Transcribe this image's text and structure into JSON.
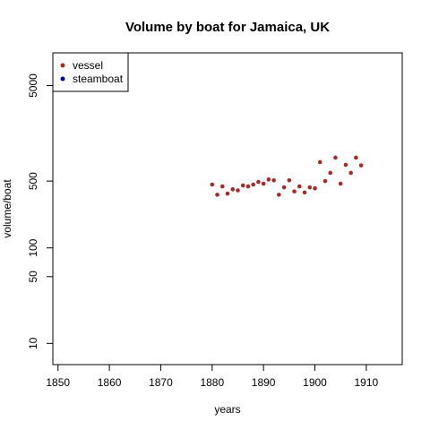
{
  "chart_data": {
    "type": "scatter",
    "title": "Volume by boat for Jamaica, UK",
    "xlabel": "years",
    "ylabel": "volume/boat",
    "y_scale": "log",
    "xlim": [
      1849,
      1917
    ],
    "ylim": [
      6,
      11000
    ],
    "x_ticks": [
      1850,
      1860,
      1870,
      1880,
      1890,
      1900,
      1910
    ],
    "y_ticks": [
      10,
      50,
      100,
      500,
      5000
    ],
    "legend_position": "top-left",
    "series": [
      {
        "name": "vessel",
        "color": "#a52a2a",
        "x": [
          1880,
          1881,
          1882,
          1883,
          1884,
          1885,
          1886,
          1887,
          1888,
          1889,
          1890,
          1891,
          1892,
          1893,
          1894,
          1895,
          1896,
          1897,
          1898,
          1899,
          1900,
          1901,
          1902,
          1903,
          1904,
          1905,
          1906,
          1907,
          1908,
          1909
        ],
        "y": [
          460,
          360,
          440,
          370,
          410,
          400,
          450,
          440,
          460,
          490,
          470,
          520,
          510,
          360,
          430,
          510,
          390,
          440,
          380,
          430,
          420,
          790,
          500,
          610,
          880,
          470,
          740,
          610,
          880,
          730
        ]
      },
      {
        "name": "steamboat",
        "color": "#00008b",
        "x": [],
        "y": []
      }
    ]
  }
}
